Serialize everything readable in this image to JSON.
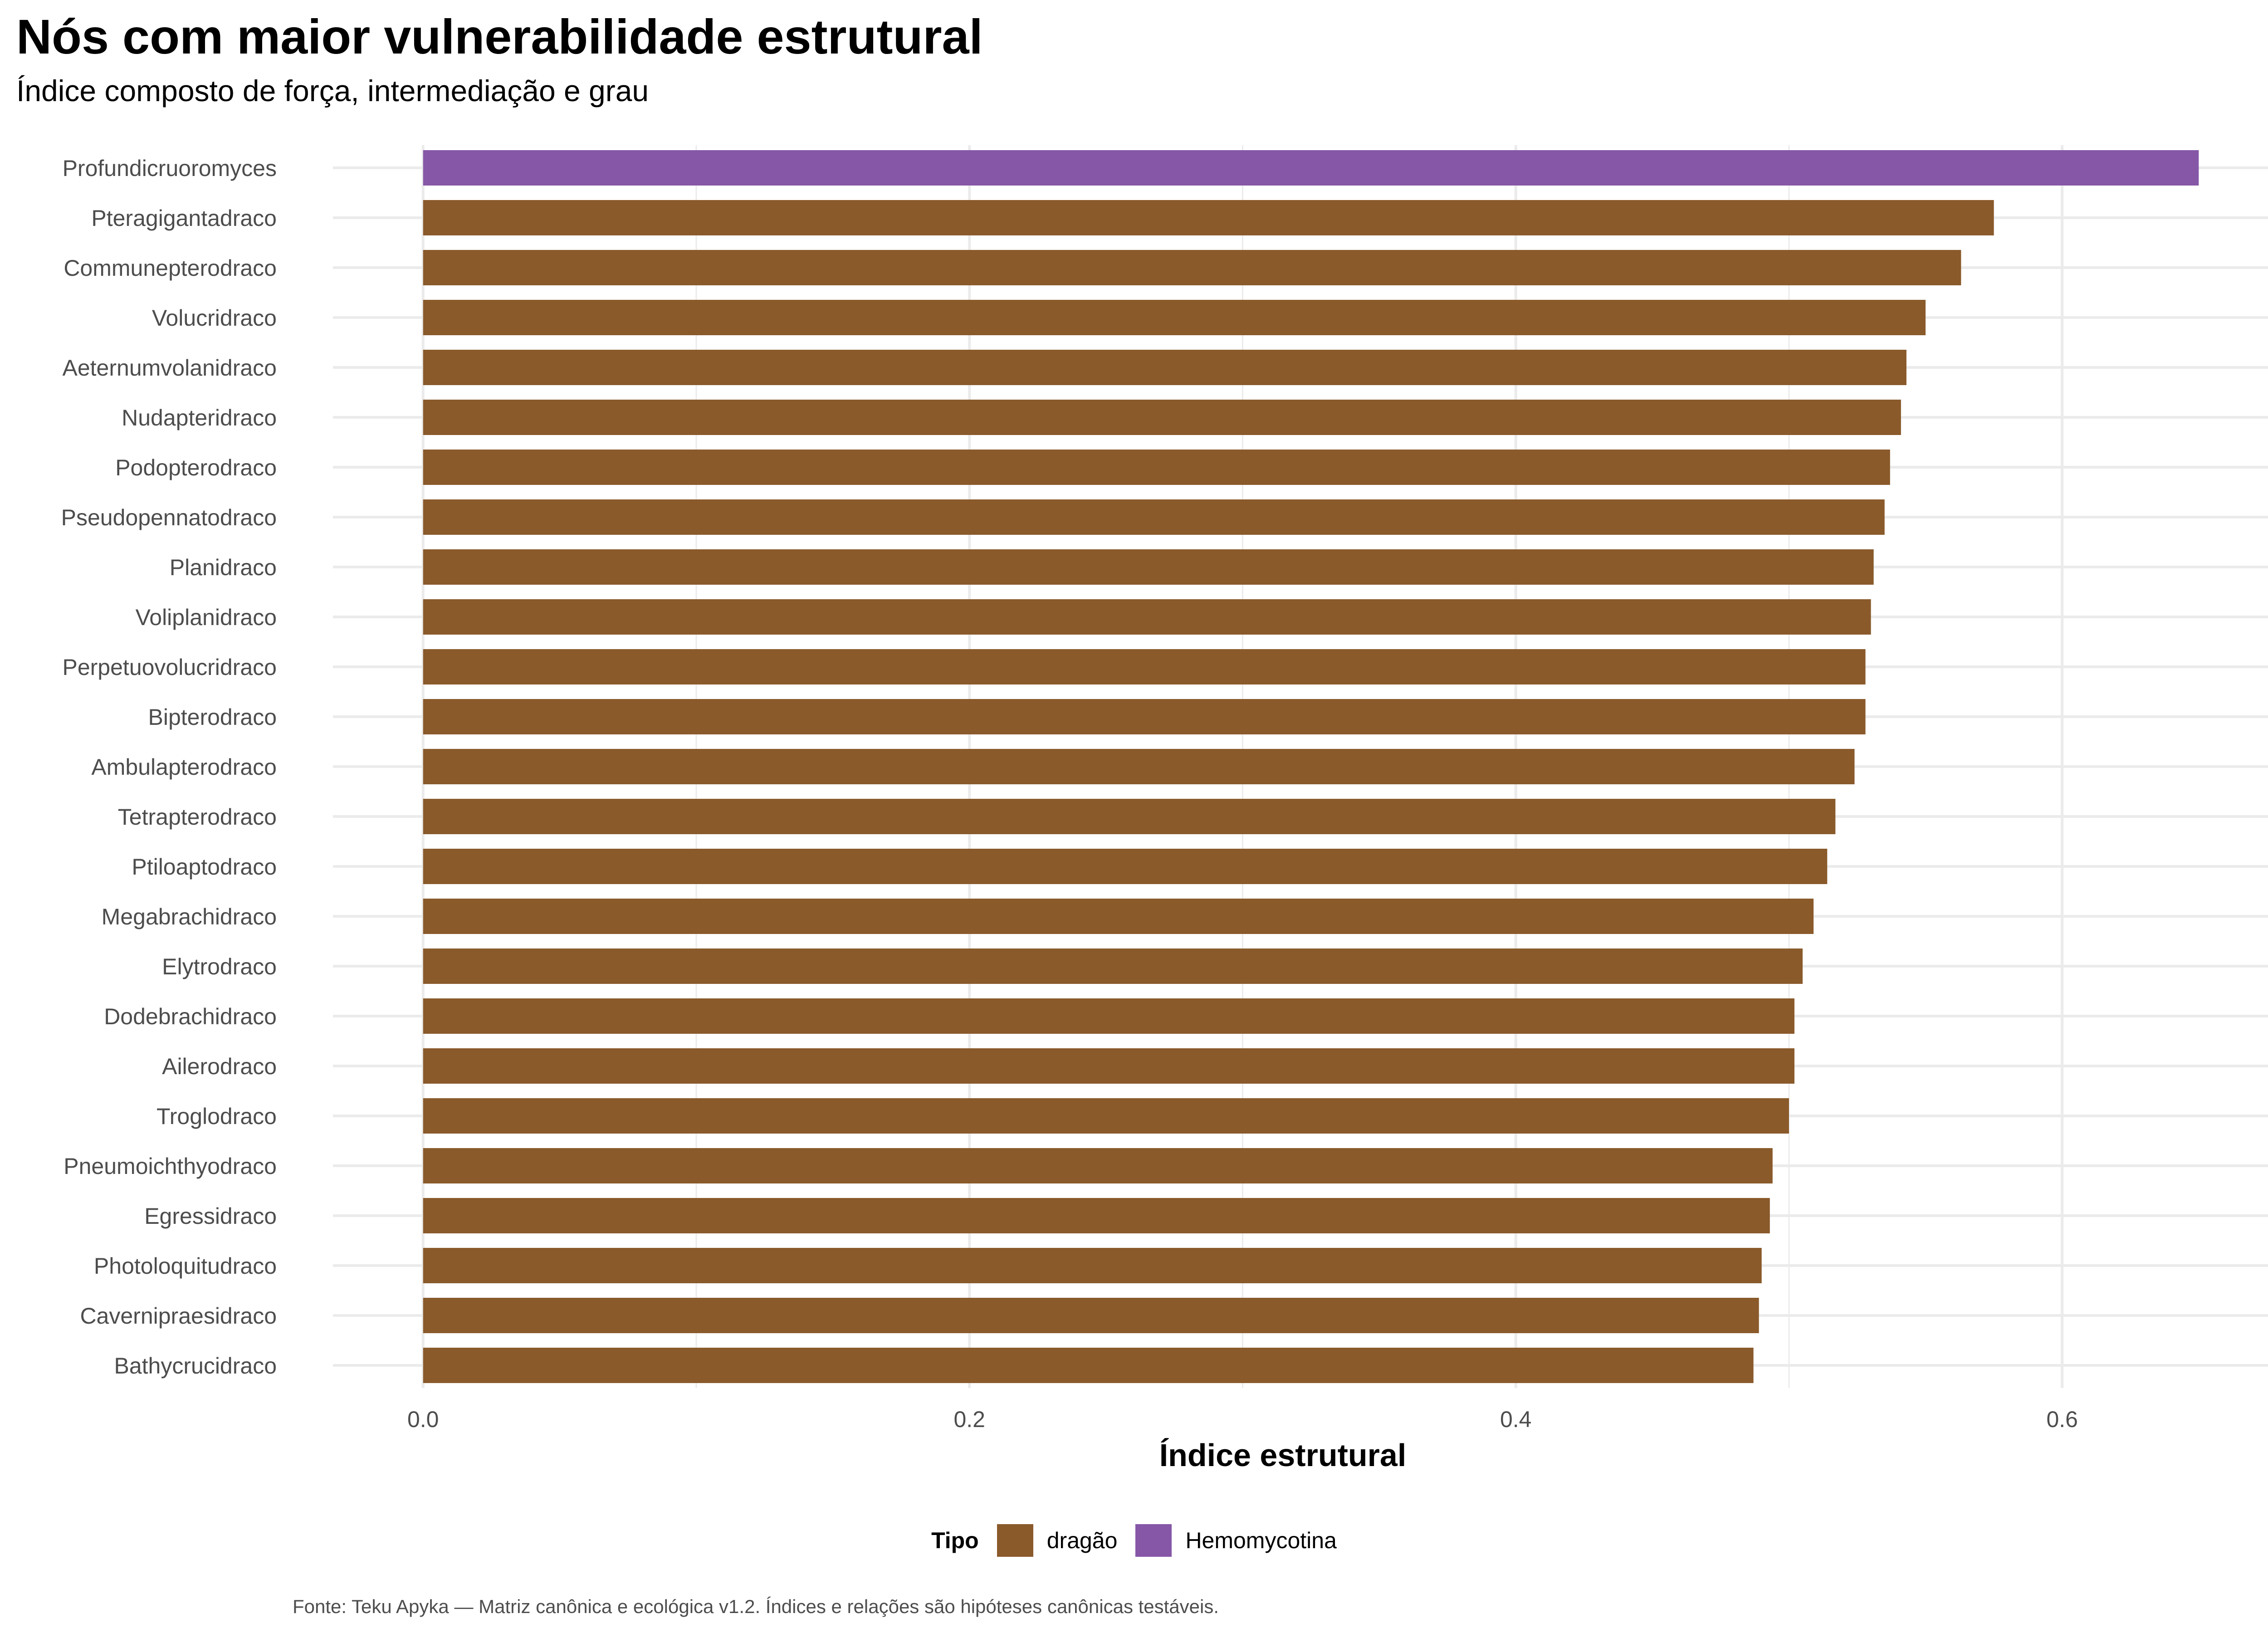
{
  "colors": {
    "dragao": "#8a5a2b",
    "hemomycotina": "#8657a7",
    "grid": "#ebebeb",
    "tick_text": "#4d4d4d"
  },
  "chart_data": {
    "type": "bar",
    "orientation": "horizontal",
    "title": "Nós com maior vulnerabilidade estrutural",
    "subtitle": "Índice composto de força, intermediação e grau",
    "xlabel": "Índice estrutural",
    "ylabel": "",
    "xlim": [
      -0.033,
      0.68
    ],
    "xticks": [
      0.0,
      0.2,
      0.4,
      0.6
    ],
    "xtick_labels": [
      "0.0",
      "0.2",
      "0.4",
      "0.6"
    ],
    "grid": true,
    "legend_position": "bottom",
    "legend": {
      "title": "Tipo",
      "entries": [
        {
          "label": "dragão",
          "color": "#8a5a2b"
        },
        {
          "label": "Hemomycotina",
          "color": "#8657a7"
        }
      ]
    },
    "caption": "Fonte: Teku Apyka — Matriz canônica e ecológica v1.2. Índices e relações são hipóteses canônicas testáveis.",
    "categories": [
      "Profundicruoromyces",
      "Pteragigantadraco",
      "Communepterodraco",
      "Volucridraco",
      "Aeternumvolanidraco",
      "Nudapteridraco",
      "Podopterodraco",
      "Pseudopennatodraco",
      "Planidraco",
      "Voliplanidraco",
      "Perpetuovolucridraco",
      "Bipterodraco",
      "Ambulapterodraco",
      "Tetrapterodraco",
      "Ptiloaptodraco",
      "Megabrachidraco",
      "Elytrodraco",
      "Dodebrachidraco",
      "Ailerodraco",
      "Troglodraco",
      "Pneumoichthyodraco",
      "Egressidraco",
      "Photoloquitudraco",
      "Cavernipraesidraco",
      "Bathycrucidraco"
    ],
    "values": [
      0.65,
      0.575,
      0.563,
      0.55,
      0.543,
      0.541,
      0.537,
      0.535,
      0.531,
      0.53,
      0.528,
      0.528,
      0.524,
      0.517,
      0.514,
      0.509,
      0.505,
      0.502,
      0.502,
      0.5,
      0.494,
      0.493,
      0.49,
      0.489,
      0.487
    ],
    "types": [
      "Hemomycotina",
      "dragão",
      "dragão",
      "dragão",
      "dragão",
      "dragão",
      "dragão",
      "dragão",
      "dragão",
      "dragão",
      "dragão",
      "dragão",
      "dragão",
      "dragão",
      "dragão",
      "dragão",
      "dragão",
      "dragão",
      "dragão",
      "dragão",
      "dragão",
      "dragão",
      "dragão",
      "dragão",
      "dragão"
    ]
  }
}
